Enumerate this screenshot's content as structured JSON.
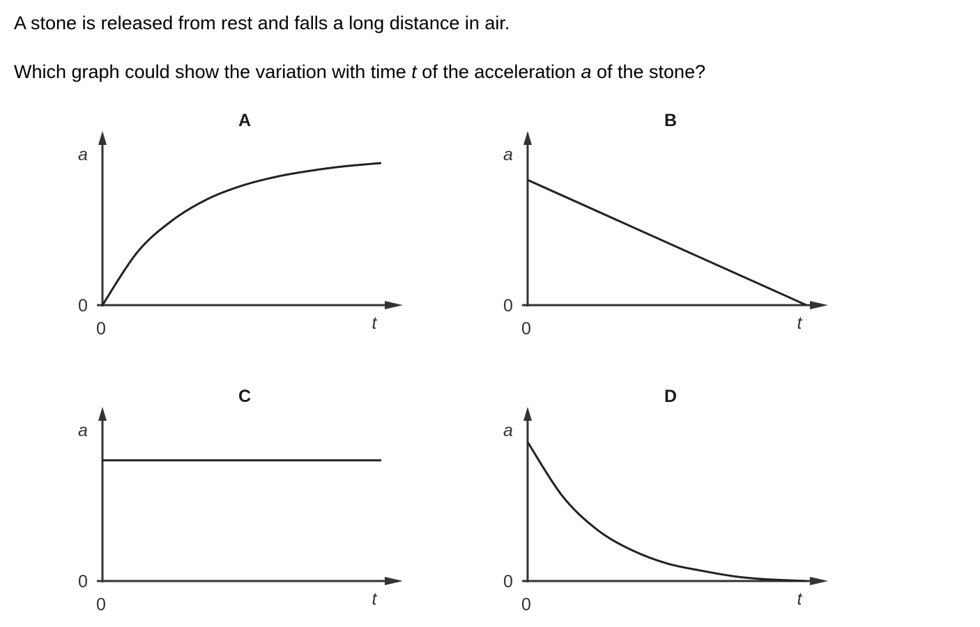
{
  "question": {
    "line1": "A stone is released from rest and falls a long distance in air.",
    "line2_before": "Which graph could show the variation with time ",
    "line2_t": "t",
    "line2_middle": " of the acceleration ",
    "line2_a": "a",
    "line2_after": " of the stone?"
  },
  "graphs": [
    {
      "id": "A",
      "letter": "A",
      "ylabel": "a",
      "xlabel": "t",
      "y_origin": "0",
      "x_origin": "0",
      "shape": "rising curve starting at zero and levelling off",
      "points": [
        [
          0,
          0
        ],
        [
          0.125,
          0.35
        ],
        [
          0.25,
          0.56
        ],
        [
          0.375,
          0.7
        ],
        [
          0.5,
          0.79
        ],
        [
          0.625,
          0.85
        ],
        [
          0.75,
          0.89
        ],
        [
          0.875,
          0.92
        ],
        [
          1,
          0.94
        ]
      ]
    },
    {
      "id": "B",
      "letter": "B",
      "ylabel": "a",
      "xlabel": "t",
      "y_origin": "0",
      "x_origin": "0",
      "shape": "straight line decreasing from a non-zero value to zero",
      "points": [
        [
          0,
          0.86
        ],
        [
          1,
          0
        ]
      ]
    },
    {
      "id": "C",
      "letter": "C",
      "ylabel": "a",
      "xlabel": "t",
      "y_origin": "0",
      "x_origin": "0",
      "shape": "horizontal line at a constant non-zero value",
      "points": [
        [
          0,
          0.81
        ],
        [
          1,
          0.81
        ]
      ]
    },
    {
      "id": "D",
      "letter": "D",
      "ylabel": "a",
      "xlabel": "t",
      "y_origin": "0",
      "x_origin": "0",
      "shape": "curve decreasing from a non-zero value and approaching zero",
      "points": [
        [
          0,
          0.95
        ],
        [
          0.125,
          0.58
        ],
        [
          0.25,
          0.35
        ],
        [
          0.375,
          0.21
        ],
        [
          0.5,
          0.12
        ],
        [
          0.625,
          0.07
        ],
        [
          0.75,
          0.03
        ],
        [
          0.875,
          0.01
        ],
        [
          1,
          0.0
        ]
      ]
    }
  ]
}
